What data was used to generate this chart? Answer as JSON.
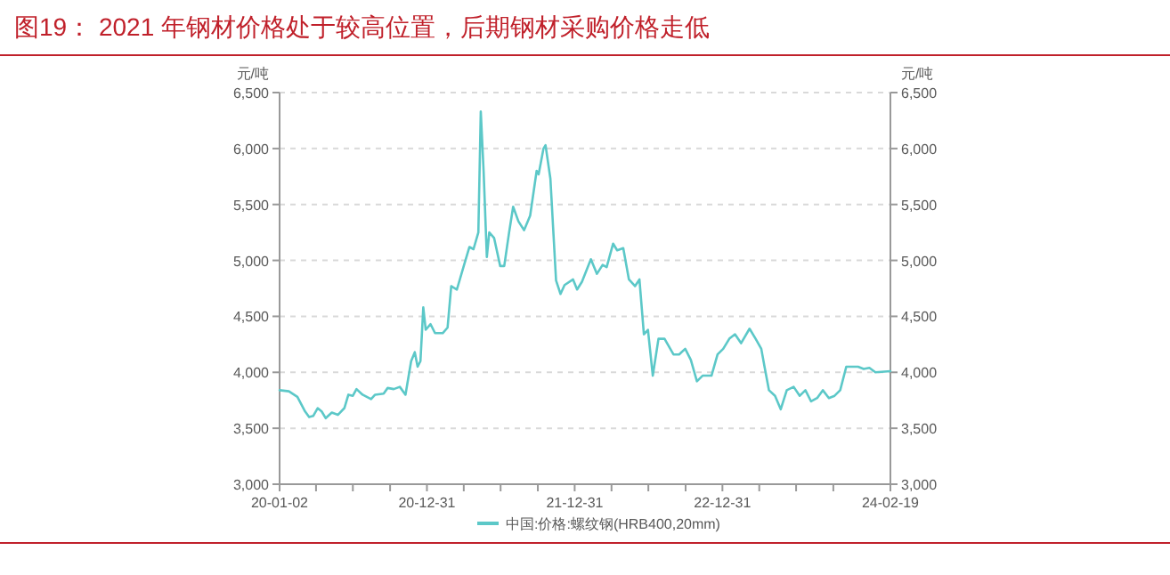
{
  "chart_data": {
    "type": "line",
    "title": "图19：  2021 年钢材价格处于较高位置，后期钢材采购价格走低",
    "ylabel": "元/吨",
    "y2label": "元/吨",
    "xlim": [
      "2020-01-02",
      "2024-02-19"
    ],
    "xticks": [
      {
        "value": "2020-01-02",
        "label": "20-01-02"
      },
      {
        "value": "2020-04-01",
        "label": null
      },
      {
        "value": "2020-07-01",
        "label": null
      },
      {
        "value": "2020-10-01",
        "label": null
      },
      {
        "value": "2020-12-31",
        "label": "20-12-31"
      },
      {
        "value": "2021-04-01",
        "label": null
      },
      {
        "value": "2021-07-01",
        "label": null
      },
      {
        "value": "2021-10-01",
        "label": null
      },
      {
        "value": "2021-12-31",
        "label": "21-12-31"
      },
      {
        "value": "2022-04-01",
        "label": null
      },
      {
        "value": "2022-07-01",
        "label": null
      },
      {
        "value": "2022-10-01",
        "label": null
      },
      {
        "value": "2022-12-31",
        "label": "22-12-31"
      },
      {
        "value": "2023-04-01",
        "label": null
      },
      {
        "value": "2023-07-01",
        "label": null
      },
      {
        "value": "2023-10-01",
        "label": null
      },
      {
        "value": "2024-02-19",
        "label": "24-02-19"
      }
    ],
    "ylim": [
      3000,
      6500
    ],
    "yticks": [
      {
        "value": 3000,
        "label": "3,000"
      },
      {
        "value": 3500,
        "label": "3,500"
      },
      {
        "value": 4000,
        "label": "4,000"
      },
      {
        "value": 4500,
        "label": "4,500"
      },
      {
        "value": 5000,
        "label": "5,000"
      },
      {
        "value": 5500,
        "label": "5,500"
      },
      {
        "value": 6000,
        "label": "6,000"
      },
      {
        "value": 6500,
        "label": "6,500"
      }
    ],
    "y2lim": [
      3000,
      6500
    ],
    "y2ticks": [
      {
        "value": 3000,
        "label": "3,000"
      },
      {
        "value": 3500,
        "label": "3,500"
      },
      {
        "value": 4000,
        "label": "4,000"
      },
      {
        "value": 4500,
        "label": "4,500"
      },
      {
        "value": 5000,
        "label": "5,000"
      },
      {
        "value": 5500,
        "label": "5,500"
      },
      {
        "value": 6000,
        "label": "6,000"
      },
      {
        "value": 6500,
        "label": "6,500"
      }
    ],
    "grid": "y",
    "legend": "bottom",
    "marker": "none",
    "line_style": "solid",
    "series": [
      {
        "name": "中国:价格:螺纹钢(HRB400,20mm)",
        "color": "#5cc8c8",
        "x": [
          "2020-01-02",
          "2020-01-25",
          "2020-02-15",
          "2020-03-05",
          "2020-03-15",
          "2020-03-25",
          "2020-04-05",
          "2020-04-15",
          "2020-04-25",
          "2020-05-10",
          "2020-05-25",
          "2020-06-10",
          "2020-06-20",
          "2020-07-01",
          "2020-07-10",
          "2020-07-25",
          "2020-08-15",
          "2020-08-25",
          "2020-09-15",
          "2020-09-25",
          "2020-10-10",
          "2020-10-25",
          "2020-11-08",
          "2020-11-22",
          "2020-12-01",
          "2020-12-08",
          "2020-12-15",
          "2020-12-22",
          "2020-12-28",
          "2021-01-09",
          "2021-01-20",
          "2021-02-08",
          "2021-02-20",
          "2021-03-01",
          "2021-03-15",
          "2021-04-01",
          "2021-04-15",
          "2021-04-25",
          "2021-05-07",
          "2021-05-13",
          "2021-05-20",
          "2021-05-28",
          "2021-06-03",
          "2021-06-15",
          "2021-06-30",
          "2021-07-10",
          "2021-07-22",
          "2021-08-01",
          "2021-08-14",
          "2021-08-28",
          "2021-09-12",
          "2021-09-28",
          "2021-10-03",
          "2021-10-15",
          "2021-10-20",
          "2021-11-01",
          "2021-11-15",
          "2021-11-26",
          "2021-12-06",
          "2021-12-27",
          "2022-01-06",
          "2022-01-18",
          "2022-02-09",
          "2022-02-24",
          "2022-03-10",
          "2022-03-20",
          "2022-04-05",
          "2022-04-15",
          "2022-04-30",
          "2022-05-14",
          "2022-05-29",
          "2022-06-09",
          "2022-06-20",
          "2022-06-30",
          "2022-07-12",
          "2022-07-26",
          "2022-08-10",
          "2022-09-01",
          "2022-09-15",
          "2022-09-30",
          "2022-10-14",
          "2022-10-29",
          "2022-11-12",
          "2022-12-04",
          "2022-12-19",
          "2023-01-02",
          "2023-01-17",
          "2023-01-31",
          "2023-02-15",
          "2023-03-08",
          "2023-03-23",
          "2023-04-06",
          "2023-04-14",
          "2023-04-25",
          "2023-05-10",
          "2023-05-24",
          "2023-06-08",
          "2023-06-25",
          "2023-07-10",
          "2023-07-24",
          "2023-08-07",
          "2023-08-22",
          "2023-09-05",
          "2023-09-20",
          "2023-10-04",
          "2023-10-18",
          "2023-11-02",
          "2023-11-16",
          "2023-12-01",
          "2023-12-15",
          "2023-12-29",
          "2024-01-13",
          "2024-02-19"
        ],
        "values": [
          3840,
          3830,
          3780,
          3650,
          3600,
          3610,
          3680,
          3650,
          3590,
          3640,
          3620,
          3680,
          3800,
          3790,
          3850,
          3800,
          3760,
          3800,
          3810,
          3860,
          3850,
          3870,
          3800,
          4100,
          4180,
          4050,
          4100,
          4580,
          4380,
          4430,
          4350,
          4350,
          4400,
          4770,
          4740,
          4950,
          5120,
          5100,
          5250,
          6330,
          5800,
          5030,
          5250,
          5200,
          4950,
          4950,
          5250,
          5480,
          5350,
          5270,
          5400,
          5800,
          5770,
          6000,
          6030,
          5730,
          4820,
          4700,
          4780,
          4830,
          4740,
          4810,
          5010,
          4880,
          4960,
          4940,
          5150,
          5090,
          5110,
          4830,
          4770,
          4830,
          4340,
          4380,
          3970,
          4300,
          4300,
          4160,
          4160,
          4210,
          4110,
          3920,
          3970,
          3970,
          4160,
          4210,
          4300,
          4340,
          4260,
          4390,
          4300,
          4210,
          4050,
          3840,
          3790,
          3670,
          3840,
          3870,
          3790,
          3840,
          3740,
          3770,
          3840,
          3770,
          3790,
          3840,
          4050,
          4050,
          4050,
          4030,
          4040,
          4000,
          4010
        ]
      }
    ]
  }
}
